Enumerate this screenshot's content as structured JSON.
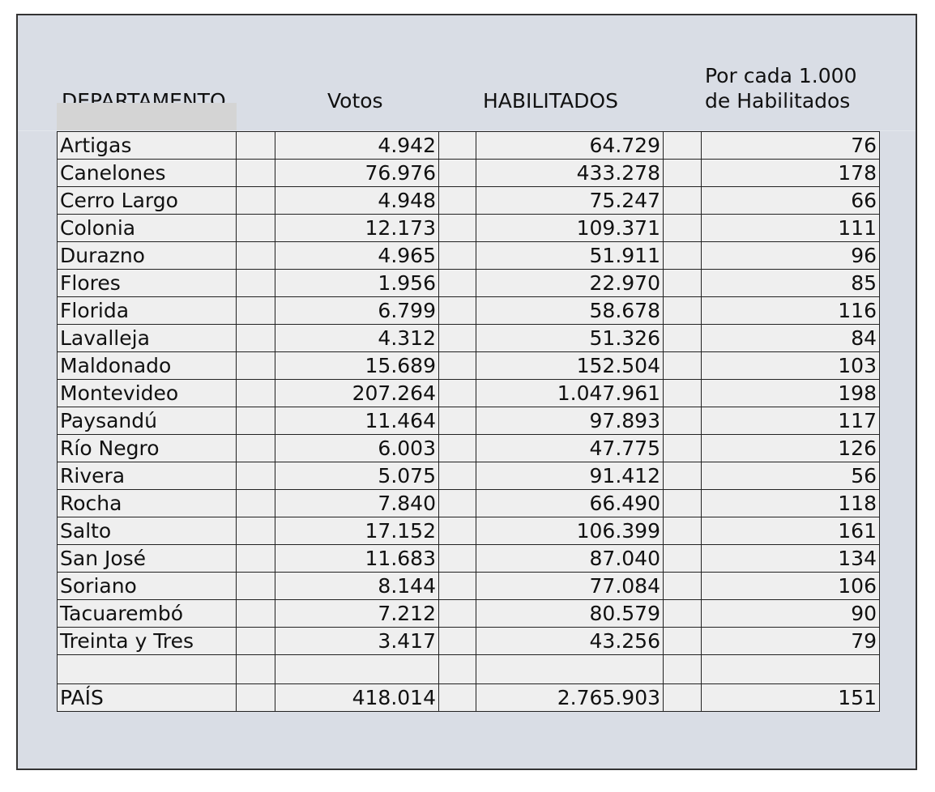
{
  "headers": {
    "departamento": "DEPARTAMENTO",
    "votos": "Votos",
    "habilitados": "HABILITADOS",
    "por_cada_line1": "Por cada 1.000",
    "por_cada_line2": "de Habilitados"
  },
  "rows": [
    {
      "departamento": "Artigas",
      "votos": "4.942",
      "habilitados": "64.729",
      "por_cada": "76"
    },
    {
      "departamento": "Canelones",
      "votos": "76.976",
      "habilitados": "433.278",
      "por_cada": "178"
    },
    {
      "departamento": "Cerro Largo",
      "votos": "4.948",
      "habilitados": "75.247",
      "por_cada": "66"
    },
    {
      "departamento": "Colonia",
      "votos": "12.173",
      "habilitados": "109.371",
      "por_cada": "111"
    },
    {
      "departamento": "Durazno",
      "votos": "4.965",
      "habilitados": "51.911",
      "por_cada": "96"
    },
    {
      "departamento": "Flores",
      "votos": "1.956",
      "habilitados": "22.970",
      "por_cada": "85"
    },
    {
      "departamento": "Florida",
      "votos": "6.799",
      "habilitados": "58.678",
      "por_cada": "116"
    },
    {
      "departamento": "Lavalleja",
      "votos": "4.312",
      "habilitados": "51.326",
      "por_cada": "84"
    },
    {
      "departamento": "Maldonado",
      "votos": "15.689",
      "habilitados": "152.504",
      "por_cada": "103"
    },
    {
      "departamento": "Montevideo",
      "votos": "207.264",
      "habilitados": "1.047.961",
      "por_cada": "198"
    },
    {
      "departamento": "Paysandú",
      "votos": "11.464",
      "habilitados": "97.893",
      "por_cada": "117"
    },
    {
      "departamento": "Río Negro",
      "votos": "6.003",
      "habilitados": "47.775",
      "por_cada": "126"
    },
    {
      "departamento": "Rivera",
      "votos": "5.075",
      "habilitados": "91.412",
      "por_cada": "56"
    },
    {
      "departamento": "Rocha",
      "votos": "7.840",
      "habilitados": "66.490",
      "por_cada": "118"
    },
    {
      "departamento": "Salto",
      "votos": "17.152",
      "habilitados": "106.399",
      "por_cada": "161"
    },
    {
      "departamento": "San José",
      "votos": "11.683",
      "habilitados": "87.040",
      "por_cada": "134"
    },
    {
      "departamento": "Soriano",
      "votos": "8.144",
      "habilitados": "77.084",
      "por_cada": "106"
    },
    {
      "departamento": "Tacuarembó",
      "votos": "7.212",
      "habilitados": "80.579",
      "por_cada": "90"
    },
    {
      "departamento": "Treinta y Tres",
      "votos": "3.417",
      "habilitados": "43.256",
      "por_cada": "79"
    }
  ],
  "total": {
    "departamento": "PAÍS",
    "votos": "418.014",
    "habilitados": "2.765.903",
    "por_cada": "151"
  }
}
